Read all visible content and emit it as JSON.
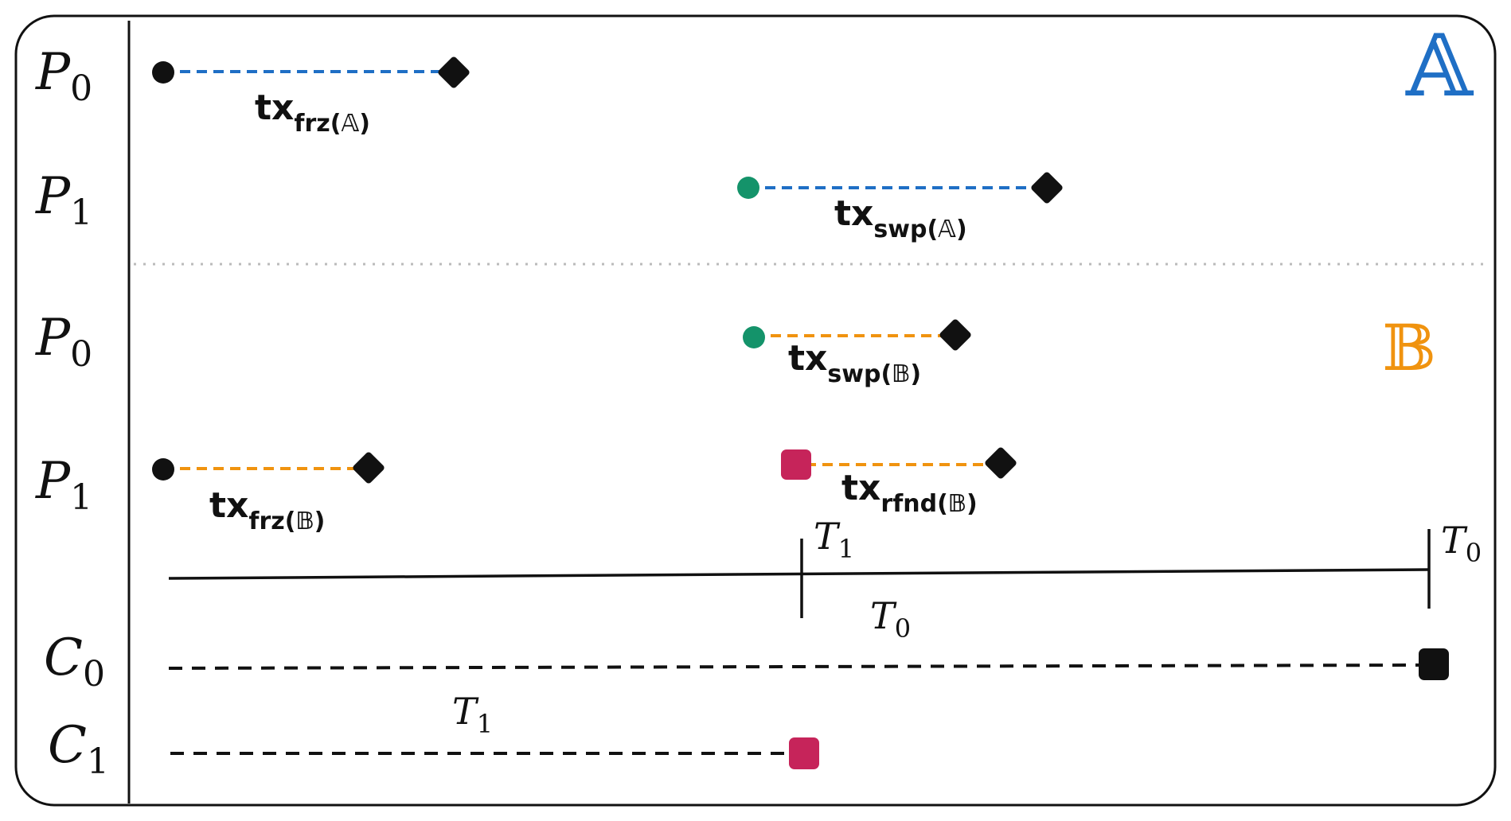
{
  "colors": {
    "frame": "#111111",
    "chain_a": "#1f6fc5",
    "chain_b": "#f0930f",
    "green_dot": "#14936a",
    "refund_square": "#c6245a",
    "separator": "#bbbbbb"
  },
  "chains": {
    "a_symbol": "𝔸",
    "b_symbol": "𝔹"
  },
  "rows": [
    {
      "party": "P",
      "index": "0"
    },
    {
      "party": "P",
      "index": "1"
    },
    {
      "party": "P",
      "index": "0"
    },
    {
      "party": "P",
      "index": "1"
    }
  ],
  "transactions": [
    {
      "base": "tx",
      "sub": "frz(𝔸)",
      "chain": "A",
      "start": "black-dot"
    },
    {
      "base": "tx",
      "sub": "swp(𝔸)",
      "chain": "A",
      "start": "green-dot"
    },
    {
      "base": "tx",
      "sub": "swp(𝔹)",
      "chain": "B",
      "start": "green-dot"
    },
    {
      "base": "tx",
      "sub": "frz(𝔹)",
      "chain": "B",
      "start": "black-dot"
    },
    {
      "base": "tx",
      "sub": "rfnd(𝔹)",
      "chain": "B",
      "start": "pink-square"
    }
  ],
  "timeline": {
    "t1_upper": {
      "base": "T",
      "sub": "1"
    },
    "t0_upper": {
      "base": "T",
      "sub": "0"
    },
    "t0_lower": {
      "base": "T",
      "sub": "0"
    },
    "t1_lower": {
      "base": "T",
      "sub": "1"
    }
  },
  "contracts": [
    {
      "name": "C",
      "index": "0"
    },
    {
      "name": "C",
      "index": "1"
    }
  ]
}
